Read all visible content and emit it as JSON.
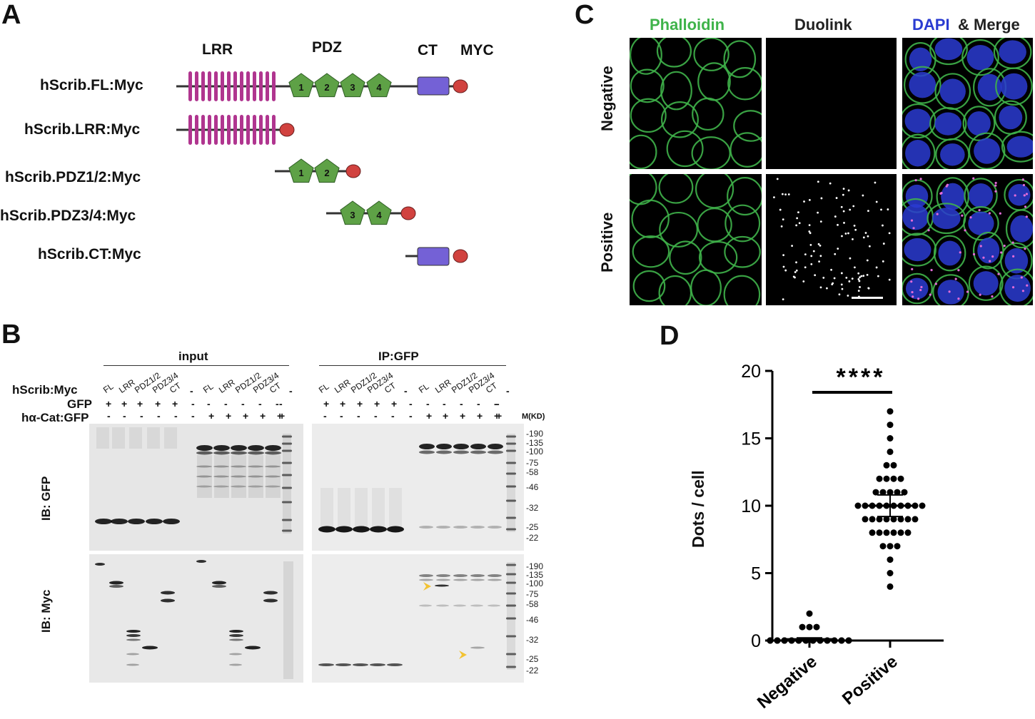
{
  "panels": {
    "a": "A",
    "b": "B",
    "c": "C",
    "d": "D"
  },
  "domain_headers": {
    "lrr": "LRR",
    "pdz": "PDZ",
    "ct": "CT",
    "myc": "MYC"
  },
  "constructs": [
    {
      "label": "hScrib.FL:Myc"
    },
    {
      "label": "hScrib.LRR:Myc"
    },
    {
      "label": "hScrib.PDZ1/2:Myc"
    },
    {
      "label": "hScrib.PDZ3/4:Myc"
    },
    {
      "label": "hScrib.CT:Myc"
    }
  ],
  "pdz_numbers": [
    "1",
    "2",
    "3",
    "4"
  ],
  "colors": {
    "lrr": "#b0358f",
    "pdz": "#5ea146",
    "ct": "#7461d6",
    "myc": "#d1423f",
    "phalloidin": "#3fb34a",
    "dapi": "#2a3bd1",
    "arrow": "#f2c232"
  },
  "blot": {
    "input_title": "input",
    "ip_title": "IP:GFP",
    "row_labels": [
      "hScrib:Myc",
      "GFP",
      "hα-Cat:GFP"
    ],
    "lanes": [
      "FL",
      "LRR",
      "PDZ1/2",
      "PDZ3/4",
      "CT",
      "-"
    ],
    "gfp_row_input": [
      "+",
      "+",
      "+",
      "+",
      "+",
      "-",
      "-",
      "-",
      "-",
      "-",
      "-",
      "-"
    ],
    "cat_row_input": [
      "-",
      "-",
      "-",
      "-",
      "-",
      "-",
      "+",
      "+",
      "+",
      "+",
      "+",
      "+"
    ],
    "gfp_row_ip": [
      "+",
      "+",
      "+",
      "+",
      "+",
      "-",
      "-",
      "-",
      "-",
      "-",
      "-",
      "-"
    ],
    "cat_row_ip": [
      "-",
      "-",
      "-",
      "-",
      "-",
      "-",
      "+",
      "+",
      "+",
      "+",
      "+",
      "+"
    ],
    "mw_header": "M(KD)",
    "ib_gfp": "IB: GFP",
    "ib_myc": "IB: Myc",
    "mw_top": [
      "-190",
      "-135",
      "-100",
      "-75",
      "-58",
      "-46",
      "-32",
      "-25",
      "-22"
    ],
    "mw_bottom": [
      "-190",
      "-135",
      "-100",
      "-75",
      "-58",
      "-46",
      "-32",
      "-25",
      "-22"
    ]
  },
  "micro": {
    "col_phalloidin": "Phalloidin",
    "col_duolink": "Duolink",
    "col_dapi": "DAPI",
    "col_merge": "& Merge",
    "row_negative": "Negative",
    "row_positive": "Positive"
  },
  "chart_data": {
    "type": "scatter",
    "ylabel": "Dots / cell",
    "categories": [
      "Negative",
      "Positive"
    ],
    "ylim": [
      0,
      20
    ],
    "yticks": [
      "0",
      "5",
      "10",
      "15",
      "20"
    ],
    "significance": "****",
    "series": [
      {
        "category": "Negative",
        "mean": 0.1,
        "sem": 0.1,
        "values": [
          0,
          0,
          0,
          0,
          0,
          0,
          0,
          0,
          0,
          0,
          0,
          0,
          0,
          0,
          0,
          0,
          0,
          0,
          0,
          0,
          0,
          0,
          0,
          0,
          0,
          0,
          0,
          0,
          0,
          0,
          0,
          0,
          0,
          0,
          0,
          0,
          0,
          0,
          0,
          1,
          1,
          1,
          2
        ]
      },
      {
        "category": "Positive",
        "mean": 10.0,
        "sem": 0.8,
        "values": [
          17,
          16,
          15,
          14,
          13,
          13,
          12,
          12,
          12,
          12,
          11,
          11,
          11,
          11,
          11,
          10,
          10,
          10,
          10,
          10,
          10,
          10,
          10,
          10,
          10,
          9,
          9,
          9,
          9,
          9,
          9,
          9,
          9,
          8,
          8,
          8,
          8,
          8,
          8,
          7,
          7,
          7,
          6,
          5,
          4
        ]
      }
    ]
  }
}
